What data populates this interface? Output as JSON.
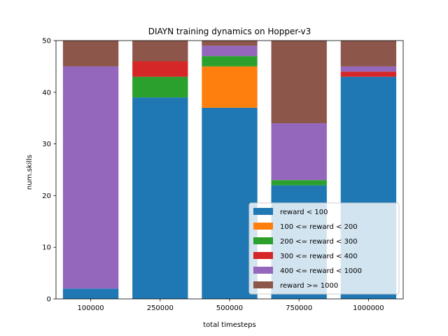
{
  "chart_data": {
    "type": "bar",
    "stacked": true,
    "title": "DIAYN training dynamics on Hopper-v3",
    "xlabel": "total timesteps",
    "ylabel": "num.skills",
    "categories": [
      "100000",
      "250000",
      "500000",
      "750000",
      "1000000"
    ],
    "ylim": [
      0,
      50
    ],
    "yticks": [
      0,
      10,
      20,
      30,
      40,
      50
    ],
    "grid": false,
    "legend_position": "lower-right",
    "series": [
      {
        "name": "reward < 100",
        "color": "#1f77b4",
        "values": [
          2,
          39,
          37,
          22,
          43
        ]
      },
      {
        "name": "100 <= reward < 200",
        "color": "#ff7f0e",
        "values": [
          0,
          0,
          8,
          0,
          0
        ]
      },
      {
        "name": "200 <= reward < 300",
        "color": "#2ca02c",
        "values": [
          0,
          4,
          2,
          1,
          0
        ]
      },
      {
        "name": "300 <= reward < 400",
        "color": "#d62728",
        "values": [
          0,
          3,
          0,
          0,
          1
        ]
      },
      {
        "name": "400 <= reward < 1000",
        "color": "#9467bd",
        "values": [
          43,
          0,
          2,
          11,
          1
        ]
      },
      {
        "name": "reward >= 1000",
        "color": "#8c564b",
        "values": [
          5,
          4,
          1,
          16,
          5
        ]
      }
    ]
  }
}
